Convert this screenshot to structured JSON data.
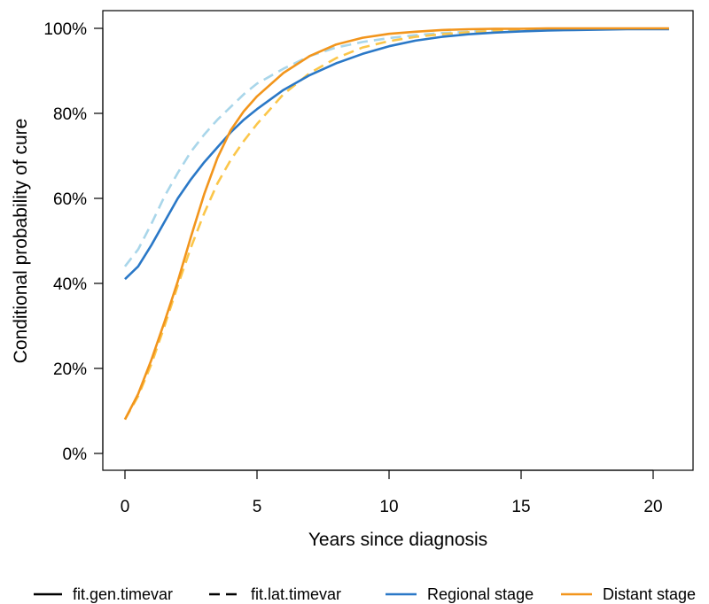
{
  "chart_data": {
    "type": "line",
    "xlabel": "Years since diagnosis",
    "ylabel": "Conditional probability of cure",
    "xlim": [
      0,
      20.6
    ],
    "ylim": [
      0,
      1.0
    ],
    "xticks": [
      0,
      5,
      10,
      15,
      20
    ],
    "xtick_labels": [
      "0",
      "5",
      "10",
      "15",
      "20"
    ],
    "yticks": [
      0,
      0.2,
      0.4,
      0.6,
      0.8,
      1.0
    ],
    "ytick_labels": [
      "0%",
      "20%",
      "40%",
      "60%",
      "80%",
      "100%"
    ],
    "grid": false,
    "legend_position": "bottom",
    "legend": {
      "line_types": [
        {
          "label": "fit.gen.timevar",
          "dash": "solid"
        },
        {
          "label": "fit.lat.timevar",
          "dash": "dashed"
        }
      ],
      "colors": [
        {
          "label": "Regional stage",
          "color": "#2a78c7"
        },
        {
          "label": "Distant stage",
          "color": "#f2951c"
        }
      ]
    },
    "series": [
      {
        "model": "fit.gen.timevar",
        "stage": "Regional stage",
        "color": "#2a78c7",
        "dash": "solid",
        "x": [
          0,
          0.5,
          1,
          1.5,
          2,
          2.5,
          3,
          3.5,
          4,
          4.5,
          5,
          6,
          7,
          8,
          9,
          10,
          11,
          12,
          13,
          14,
          15,
          16,
          17,
          18,
          19,
          20,
          20.6
        ],
        "y": [
          0.41,
          0.44,
          0.49,
          0.545,
          0.6,
          0.645,
          0.685,
          0.72,
          0.755,
          0.785,
          0.81,
          0.855,
          0.89,
          0.918,
          0.94,
          0.958,
          0.971,
          0.98,
          0.986,
          0.99,
          0.993,
          0.995,
          0.996,
          0.997,
          0.998,
          0.998,
          0.998
        ]
      },
      {
        "model": "fit.lat.timevar",
        "stage": "Regional stage",
        "color": "#a9d6ea",
        "dash": "dashed",
        "x": [
          0,
          0.5,
          1,
          1.5,
          2,
          2.5,
          3,
          3.5,
          4,
          4.5,
          5,
          6,
          7,
          8,
          9,
          10,
          11,
          12,
          13,
          14,
          15,
          16,
          17,
          18,
          19,
          20,
          20.6
        ],
        "y": [
          0.44,
          0.48,
          0.54,
          0.605,
          0.66,
          0.71,
          0.75,
          0.785,
          0.815,
          0.845,
          0.87,
          0.905,
          0.935,
          0.955,
          0.968,
          0.977,
          0.984,
          0.989,
          0.992,
          0.995,
          0.996,
          0.997,
          0.998,
          0.998,
          0.999,
          0.999,
          0.999
        ]
      },
      {
        "model": "fit.gen.timevar",
        "stage": "Distant stage",
        "color": "#f2951c",
        "dash": "solid",
        "x": [
          0,
          0.5,
          1,
          1.5,
          2,
          2.5,
          3,
          3.5,
          4,
          4.5,
          5,
          6,
          7,
          8,
          9,
          10,
          11,
          12,
          13,
          14,
          15,
          16,
          17,
          18,
          19,
          20,
          20.6
        ],
        "y": [
          0.08,
          0.14,
          0.22,
          0.31,
          0.405,
          0.51,
          0.61,
          0.695,
          0.76,
          0.805,
          0.84,
          0.895,
          0.935,
          0.962,
          0.978,
          0.987,
          0.992,
          0.996,
          0.998,
          0.999,
          0.999,
          1.0,
          1.0,
          1.0,
          1.0,
          1.0,
          1.0
        ]
      },
      {
        "model": "fit.lat.timevar",
        "stage": "Distant stage",
        "color": "#fbc64a",
        "dash": "dashed",
        "x": [
          0,
          0.5,
          1,
          1.5,
          2,
          2.5,
          3,
          3.5,
          4,
          4.5,
          5,
          6,
          7,
          8,
          9,
          10,
          11,
          12,
          13,
          14,
          15,
          16,
          17,
          18,
          19,
          20,
          20.6
        ],
        "y": [
          0.08,
          0.135,
          0.21,
          0.3,
          0.395,
          0.485,
          0.565,
          0.635,
          0.69,
          0.735,
          0.775,
          0.845,
          0.895,
          0.93,
          0.955,
          0.97,
          0.98,
          0.986,
          0.991,
          0.994,
          0.996,
          0.997,
          0.998,
          0.998,
          0.999,
          0.999,
          0.999
        ]
      }
    ]
  }
}
